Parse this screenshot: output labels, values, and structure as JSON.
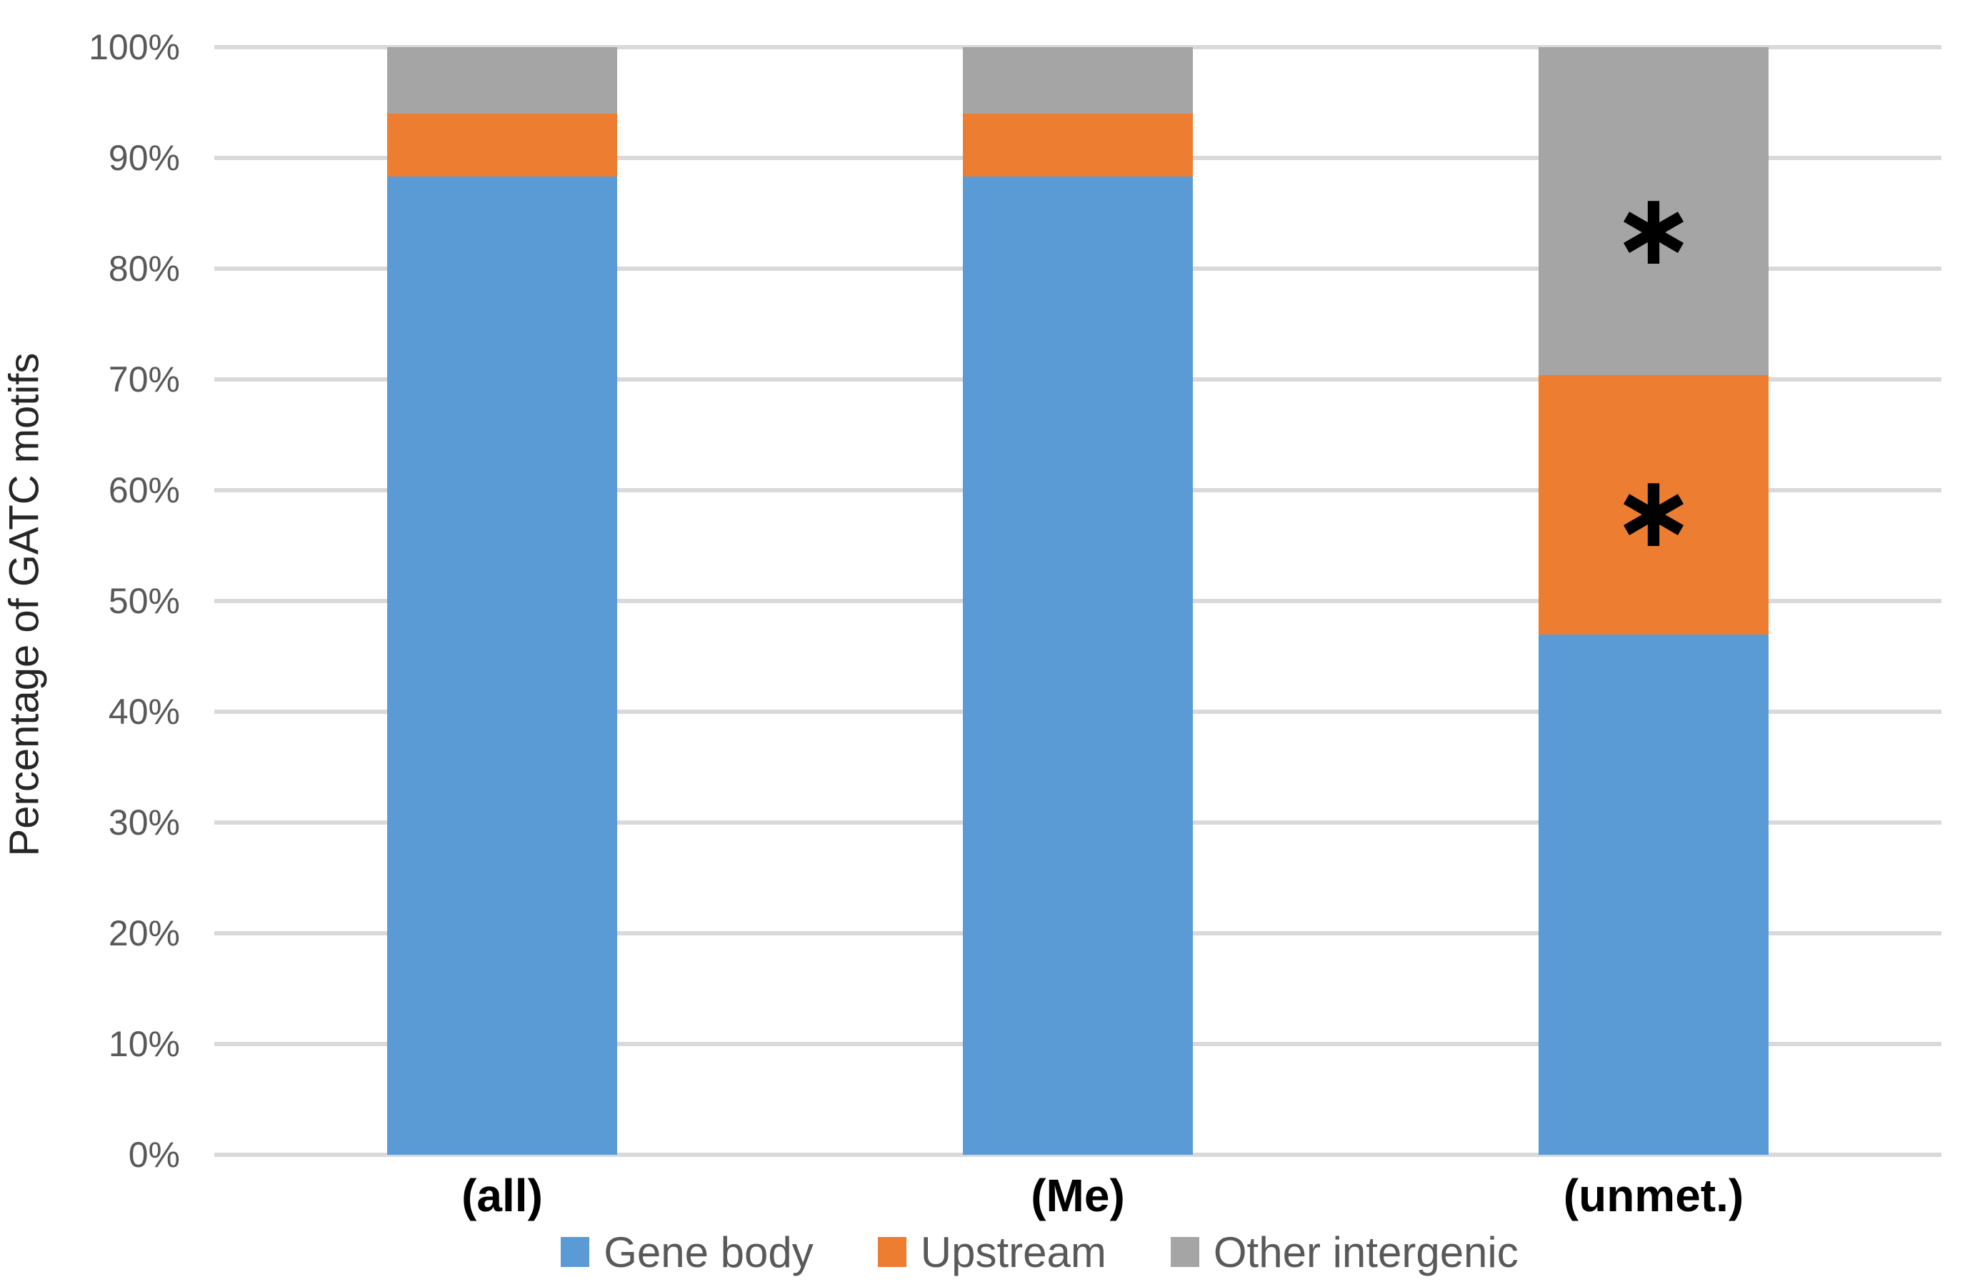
{
  "chart_data": {
    "type": "bar",
    "stacked": true,
    "title": "",
    "xlabel": "",
    "ylabel": "Percentage of GATC motifs",
    "categories": [
      "(all)",
      "(Me)",
      "(unmet.)"
    ],
    "series": [
      {
        "name": "Gene body",
        "color": "#5B9BD5",
        "values": [
          88.3,
          88.3,
          47.0
        ]
      },
      {
        "name": "Upstream",
        "color": "#ED7D31",
        "values": [
          5.7,
          5.7,
          23.4
        ]
      },
      {
        "name": "Other intergenic",
        "color": "#A5A5A5",
        "values": [
          6.0,
          6.0,
          29.6
        ]
      }
    ],
    "ylim": [
      0,
      100
    ],
    "yticks": [
      "0%",
      "10%",
      "20%",
      "30%",
      "40%",
      "50%",
      "60%",
      "70%",
      "80%",
      "90%",
      "100%"
    ],
    "grid": true,
    "gridline_color": "#D9D9D9",
    "legend_position": "bottom",
    "annotations": [
      {
        "category": "(unmet.)",
        "series": "Upstream",
        "value_pct": 58.0,
        "symbol": "∗"
      },
      {
        "category": "(unmet.)",
        "series": "Other intergenic",
        "value_pct": 83.5,
        "symbol": "∗"
      }
    ]
  }
}
